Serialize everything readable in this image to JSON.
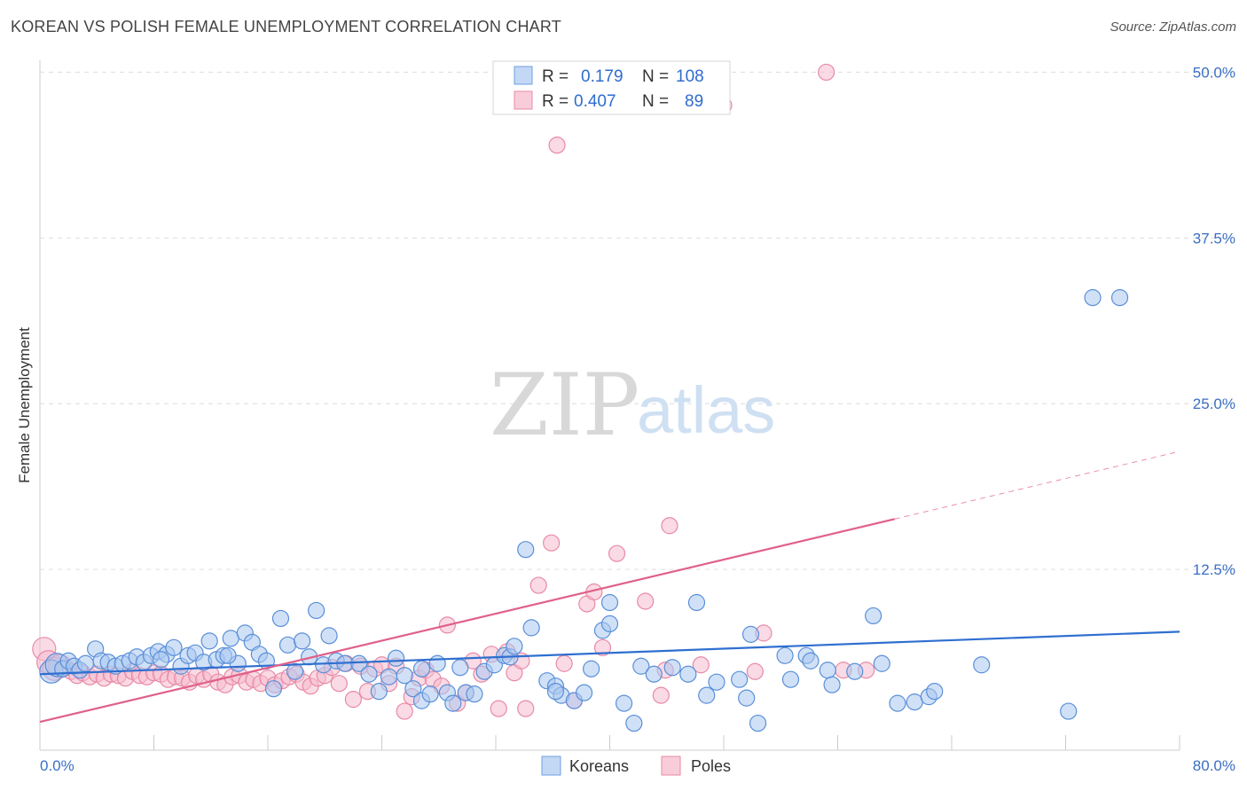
{
  "title": "KOREAN VS POLISH FEMALE UNEMPLOYMENT CORRELATION CHART",
  "source": "Source: ZipAtlas.com",
  "watermark": {
    "zip": "ZIP",
    "atlas": "atlas"
  },
  "colors": {
    "korean": "#5a8fd8",
    "korean_fill": "#a9c8f0",
    "korean_line": "#2f6fd0",
    "polish": "#e88aa6",
    "polish_fill": "#f5bccd",
    "polish_line": "#e0608a",
    "tick": "#3a6fc4",
    "grid": "#dddddd"
  },
  "legend": {
    "rows": [
      {
        "r_label": "R =",
        "r_value": "0.179",
        "n_label": "N =",
        "n_value": "108"
      },
      {
        "r_label": "R =",
        "r_value": "0.407",
        "n_label": "N =",
        "n_value": "89"
      }
    ]
  },
  "bottom_legend": [
    "Koreans",
    "Poles"
  ],
  "chart_data": {
    "type": "scatter",
    "title": "KOREAN VS POLISH FEMALE UNEMPLOYMENT CORRELATION CHART",
    "xlabel": "",
    "ylabel": "Female Unemployment",
    "xlim": [
      0,
      80
    ],
    "ylim": [
      0,
      51.5
    ],
    "x_tick_labels": [
      "0.0%",
      "80.0%"
    ],
    "y_tick_labels": [
      "12.5%",
      "25.0%",
      "37.5%",
      "50.0%"
    ],
    "y_ticks": [
      12.5,
      25.0,
      37.5,
      50.0
    ],
    "grid": true,
    "series": [
      {
        "name": "Koreans",
        "r": 0.179,
        "n": 108,
        "trend": {
          "x": [
            0,
            80
          ],
          "y": [
            4.6,
            7.8
          ],
          "dashed_from": null
        },
        "points": [
          [
            0.8,
            4.8
          ],
          [
            1.2,
            5.3
          ],
          [
            1.6,
            5.0
          ],
          [
            2.0,
            5.6
          ],
          [
            2.4,
            5.2
          ],
          [
            2.8,
            4.9
          ],
          [
            3.2,
            5.4
          ],
          [
            3.9,
            6.5
          ],
          [
            4.3,
            5.6
          ],
          [
            4.8,
            5.5
          ],
          [
            5.3,
            5.2
          ],
          [
            5.8,
            5.4
          ],
          [
            6.3,
            5.6
          ],
          [
            6.8,
            5.9
          ],
          [
            7.3,
            5.5
          ],
          [
            7.8,
            6.0
          ],
          [
            8.3,
            6.3
          ],
          [
            8.9,
            6.1
          ],
          [
            9.4,
            6.6
          ],
          [
            9.9,
            5.2
          ],
          [
            10.4,
            6.0
          ],
          [
            10.9,
            6.2
          ],
          [
            11.5,
            5.5
          ],
          [
            11.9,
            7.1
          ],
          [
            12.4,
            5.7
          ],
          [
            12.9,
            6.0
          ],
          [
            13.4,
            7.3
          ],
          [
            13.9,
            5.4
          ],
          [
            14.4,
            7.7
          ],
          [
            14.9,
            7.0
          ],
          [
            15.4,
            6.1
          ],
          [
            15.9,
            5.6
          ],
          [
            16.4,
            3.5
          ],
          [
            16.9,
            8.8
          ],
          [
            17.4,
            6.8
          ],
          [
            17.9,
            4.8
          ],
          [
            18.4,
            7.1
          ],
          [
            18.9,
            5.9
          ],
          [
            19.4,
            9.4
          ],
          [
            19.9,
            5.3
          ],
          [
            20.3,
            7.5
          ],
          [
            20.8,
            5.6
          ],
          [
            21.4,
            5.4
          ],
          [
            22.4,
            5.4
          ],
          [
            23.1,
            4.6
          ],
          [
            23.8,
            3.3
          ],
          [
            24.5,
            4.4
          ],
          [
            25.0,
            5.8
          ],
          [
            25.6,
            4.5
          ],
          [
            26.2,
            3.5
          ],
          [
            26.8,
            2.6
          ],
          [
            27.4,
            3.1
          ],
          [
            27.9,
            5.4
          ],
          [
            28.6,
            3.2
          ],
          [
            29.0,
            2.4
          ],
          [
            29.5,
            5.1
          ],
          [
            29.9,
            3.2
          ],
          [
            30.5,
            3.1
          ],
          [
            31.2,
            4.8
          ],
          [
            31.9,
            5.3
          ],
          [
            32.6,
            6.0
          ],
          [
            33.0,
            5.9
          ],
          [
            33.3,
            6.7
          ],
          [
            34.1,
            14.0
          ],
          [
            34.5,
            8.1
          ],
          [
            35.6,
            4.1
          ],
          [
            36.2,
            3.7
          ],
          [
            36.6,
            3.0
          ],
          [
            37.5,
            2.6
          ],
          [
            38.2,
            3.2
          ],
          [
            38.7,
            5.0
          ],
          [
            39.5,
            7.9
          ],
          [
            40.0,
            8.4
          ],
          [
            40.0,
            10.0
          ],
          [
            41.0,
            2.4
          ],
          [
            41.7,
            0.9
          ],
          [
            42.2,
            5.2
          ],
          [
            43.1,
            4.6
          ],
          [
            44.4,
            5.1
          ],
          [
            45.5,
            4.6
          ],
          [
            46.1,
            10.0
          ],
          [
            46.8,
            3.0
          ],
          [
            47.5,
            4.0
          ],
          [
            49.1,
            4.2
          ],
          [
            49.6,
            2.8
          ],
          [
            49.9,
            7.6
          ],
          [
            50.4,
            0.9
          ],
          [
            52.3,
            6.0
          ],
          [
            52.7,
            4.2
          ],
          [
            53.8,
            6.0
          ],
          [
            54.1,
            5.6
          ],
          [
            55.3,
            4.9
          ],
          [
            55.6,
            3.8
          ],
          [
            57.2,
            4.8
          ],
          [
            58.5,
            9.0
          ],
          [
            59.1,
            5.4
          ],
          [
            60.2,
            2.4
          ],
          [
            61.4,
            2.5
          ],
          [
            62.4,
            2.9
          ],
          [
            62.8,
            3.3
          ],
          [
            66.1,
            5.3
          ],
          [
            72.2,
            1.8
          ],
          [
            73.9,
            33.0
          ],
          [
            75.8,
            33.0
          ],
          [
            36.2,
            3.3
          ],
          [
            26.8,
            5.0
          ],
          [
            13.2,
            6.0
          ],
          [
            8.5,
            5.7
          ]
        ]
      },
      {
        "name": "Poles",
        "r": 0.407,
        "n": 89,
        "trend": {
          "x": [
            0,
            80
          ],
          "y": [
            1.0,
            21.4
          ],
          "dashed_from": 60
        },
        "points": [
          [
            0.3,
            6.5
          ],
          [
            0.6,
            5.5
          ],
          [
            1.0,
            5.0
          ],
          [
            1.4,
            5.2
          ],
          [
            1.8,
            5.1
          ],
          [
            2.2,
            4.8
          ],
          [
            2.6,
            4.5
          ],
          [
            3.0,
            4.7
          ],
          [
            3.5,
            4.4
          ],
          [
            4.0,
            4.6
          ],
          [
            4.5,
            4.3
          ],
          [
            5.0,
            4.6
          ],
          [
            5.5,
            4.5
          ],
          [
            6.0,
            4.3
          ],
          [
            6.5,
            4.8
          ],
          [
            7.0,
            4.5
          ],
          [
            7.5,
            4.4
          ],
          [
            8.0,
            4.7
          ],
          [
            8.5,
            4.6
          ],
          [
            9.0,
            4.2
          ],
          [
            9.5,
            4.4
          ],
          [
            10.0,
            4.3
          ],
          [
            10.5,
            4.0
          ],
          [
            11.0,
            4.5
          ],
          [
            11.5,
            4.2
          ],
          [
            12.0,
            4.6
          ],
          [
            12.5,
            4.0
          ],
          [
            13.0,
            3.8
          ],
          [
            13.5,
            4.4
          ],
          [
            14.0,
            4.5
          ],
          [
            14.5,
            4.0
          ],
          [
            15.0,
            4.2
          ],
          [
            15.5,
            3.9
          ],
          [
            16.0,
            4.3
          ],
          [
            16.5,
            3.8
          ],
          [
            17.0,
            4.1
          ],
          [
            17.5,
            4.4
          ],
          [
            18.0,
            4.6
          ],
          [
            18.5,
            4.0
          ],
          [
            19.0,
            3.7
          ],
          [
            19.5,
            4.3
          ],
          [
            20.0,
            4.5
          ],
          [
            20.5,
            5.1
          ],
          [
            21.0,
            3.9
          ],
          [
            21.5,
            5.4
          ],
          [
            22.0,
            2.7
          ],
          [
            22.5,
            5.2
          ],
          [
            23.0,
            3.3
          ],
          [
            23.5,
            5.0
          ],
          [
            24.0,
            5.3
          ],
          [
            24.5,
            3.9
          ],
          [
            25.0,
            5.2
          ],
          [
            25.6,
            1.8
          ],
          [
            26.1,
            2.9
          ],
          [
            26.6,
            4.3
          ],
          [
            27.1,
            4.9
          ],
          [
            27.6,
            4.2
          ],
          [
            28.2,
            3.7
          ],
          [
            28.6,
            8.3
          ],
          [
            29.3,
            2.4
          ],
          [
            29.9,
            3.2
          ],
          [
            30.4,
            5.6
          ],
          [
            31.0,
            4.6
          ],
          [
            31.7,
            6.1
          ],
          [
            32.2,
            2.0
          ],
          [
            32.8,
            6.3
          ],
          [
            33.3,
            4.7
          ],
          [
            33.8,
            5.6
          ],
          [
            34.1,
            2.0
          ],
          [
            35.0,
            11.3
          ],
          [
            35.9,
            14.5
          ],
          [
            36.3,
            44.5
          ],
          [
            36.8,
            5.4
          ],
          [
            37.5,
            2.6
          ],
          [
            38.4,
            9.9
          ],
          [
            38.9,
            10.8
          ],
          [
            39.5,
            6.6
          ],
          [
            40.5,
            13.7
          ],
          [
            42.5,
            10.1
          ],
          [
            43.6,
            3.0
          ],
          [
            43.9,
            4.9
          ],
          [
            44.2,
            15.8
          ],
          [
            46.4,
            5.3
          ],
          [
            48.0,
            47.5
          ],
          [
            50.2,
            4.8
          ],
          [
            50.8,
            7.7
          ],
          [
            55.2,
            50.0
          ],
          [
            56.4,
            4.9
          ],
          [
            58.0,
            4.9
          ]
        ]
      }
    ]
  }
}
